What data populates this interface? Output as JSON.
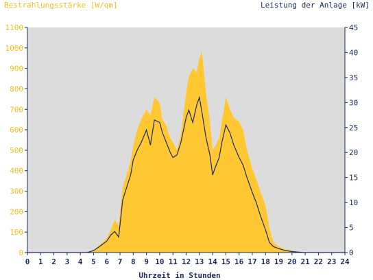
{
  "chart_data": {
    "type": "area",
    "left_axis_title": "Bestrahlungsstärke [W/qm]",
    "right_axis_title": "Leistung der Anlage [kW]",
    "xlabel": "Uhrzeit in Stunden",
    "xlim": [
      0,
      24
    ],
    "ylim_left": [
      0,
      1100
    ],
    "ylim_right": [
      0,
      45
    ],
    "x_ticks": [
      "0",
      "1",
      "2",
      "3",
      "4",
      "5",
      "6",
      "7",
      "8",
      "9",
      "10",
      "11",
      "12",
      "13",
      "14",
      "15",
      "16",
      "17",
      "18",
      "19",
      "20",
      "21",
      "22",
      "23",
      "24"
    ],
    "y_left_ticks": [
      "0",
      "100",
      "200",
      "300",
      "400",
      "500",
      "600",
      "700",
      "800",
      "900",
      "1000",
      "1100"
    ],
    "y_right_ticks": [
      "0",
      "5",
      "10",
      "15",
      "20",
      "25",
      "30",
      "35",
      "40",
      "45"
    ],
    "grid": false,
    "colors": {
      "plot_background": "#dcdcdc",
      "irradiance_fill": "#ffc832",
      "power_line": "#1a2a5a",
      "left_axis_text": "#f0c020",
      "right_axis_text": "#1a2a5a",
      "axis_line": "#1a2a5a"
    },
    "series": [
      {
        "axis": "left",
        "style": "filled-area",
        "x": [
          0,
          4.5,
          5.0,
          5.5,
          6.0,
          6.3,
          6.6,
          6.9,
          7.2,
          7.5,
          7.8,
          8.0,
          8.3,
          8.6,
          9.0,
          9.3,
          9.6,
          10.0,
          10.2,
          10.5,
          10.8,
          11.0,
          11.3,
          11.6,
          12.0,
          12.2,
          12.5,
          12.8,
          13.0,
          13.2,
          13.5,
          13.8,
          14.0,
          14.2,
          14.5,
          14.7,
          15.0,
          15.3,
          15.6,
          16.0,
          16.3,
          16.6,
          17.0,
          17.3,
          17.6,
          18.0,
          18.3,
          18.6,
          19.0,
          19.5,
          20.0,
          20.5,
          21.0,
          24
        ],
        "values": [
          0,
          0,
          10,
          40,
          70,
          110,
          160,
          130,
          320,
          380,
          450,
          520,
          600,
          650,
          700,
          670,
          760,
          730,
          650,
          620,
          560,
          540,
          500,
          580,
          780,
          860,
          900,
          880,
          950,
          980,
          780,
          640,
          500,
          520,
          560,
          640,
          760,
          700,
          660,
          640,
          600,
          500,
          410,
          360,
          300,
          230,
          120,
          50,
          30,
          15,
          8,
          3,
          0,
          0
        ]
      },
      {
        "axis": "right",
        "style": "line",
        "x": [
          0,
          4.5,
          5.0,
          5.5,
          6.0,
          6.3,
          6.6,
          6.9,
          7.2,
          7.5,
          7.8,
          8.0,
          8.3,
          8.6,
          9.0,
          9.3,
          9.6,
          10.0,
          10.2,
          10.5,
          10.8,
          11.0,
          11.3,
          11.6,
          12.0,
          12.2,
          12.5,
          12.8,
          13.0,
          13.2,
          13.5,
          13.8,
          14.0,
          14.2,
          14.5,
          14.7,
          15.0,
          15.3,
          15.6,
          16.0,
          16.3,
          16.6,
          17.0,
          17.3,
          17.6,
          18.0,
          18.3,
          18.6,
          19.0,
          19.5,
          20.0,
          20.5,
          21.0,
          24
        ],
        "values": [
          0,
          0,
          0.4,
          1.3,
          2.3,
          3.5,
          4.2,
          3.1,
          10.5,
          13.0,
          15.5,
          18.5,
          20.5,
          22.0,
          24.5,
          21.5,
          26.5,
          26.0,
          24.0,
          22.0,
          20.0,
          19.0,
          19.5,
          22.0,
          27.0,
          28.5,
          26.0,
          29.5,
          31.0,
          28.0,
          23.0,
          19.5,
          15.5,
          17.0,
          19.0,
          22.0,
          25.5,
          24.0,
          21.5,
          19.0,
          17.5,
          15.0,
          12.0,
          10.0,
          7.5,
          4.5,
          2.0,
          1.2,
          0.8,
          0.4,
          0.2,
          0.1,
          0,
          0
        ]
      }
    ]
  }
}
